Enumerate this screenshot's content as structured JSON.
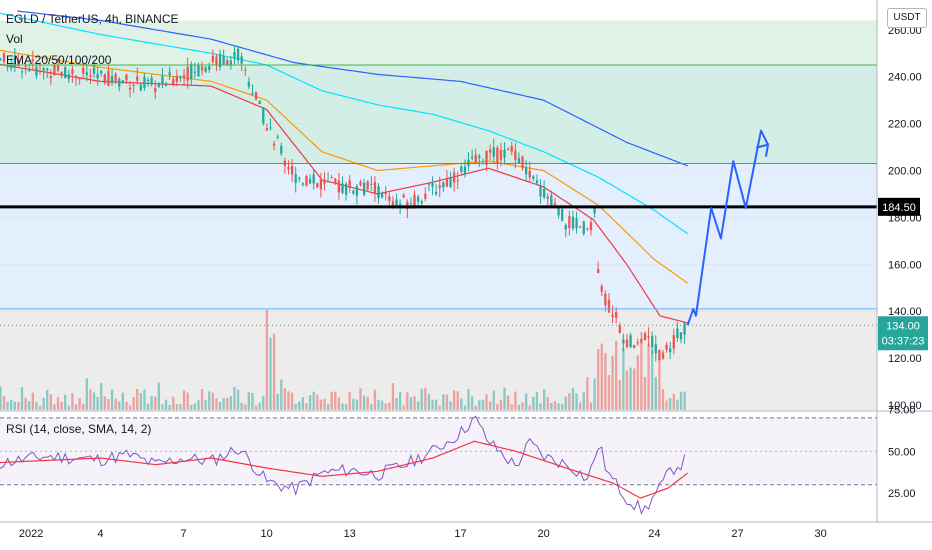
{
  "header": {
    "symbol_line": "EGLD / TetherUS, 4h, BINANCE",
    "vol_label": "Vol",
    "ema_label": "EMA 20/50/100/200",
    "currency": "USDT"
  },
  "rsi_panel": {
    "label": "RSI (14, close, SMA, 14, 2)"
  },
  "price_badges": {
    "level": "184.50",
    "last_price": "134.00",
    "countdown": "03:37:23"
  },
  "colors": {
    "up": "#26a69a",
    "down": "#ef5350",
    "ema20": "#f23645",
    "ema50": "#ff9800",
    "ema100": "#00e5ff",
    "ema200": "#2962ff",
    "projection": "#2962ff",
    "rsi": "#7e57c2",
    "rsi_ma": "#f23645",
    "zone_green": "#e0f2e6",
    "zone_teal": "#d3eee6",
    "zone_blue": "#e3effc",
    "zone_gray": "#ececec"
  },
  "chart_data": [
    {
      "type": "candlestick",
      "title": "EGLD / TetherUS, 4h, BINANCE",
      "xlabel": "",
      "ylabel": "",
      "x_ticks": [
        "2022",
        "4",
        "7",
        "10",
        "13",
        "17",
        "20",
        "24",
        "27",
        "30"
      ],
      "y_ticks": [
        100,
        120,
        140,
        160,
        180,
        200,
        220,
        240,
        260
      ],
      "ylim": [
        97,
        264
      ],
      "horizontal_levels": [
        {
          "value": 184.5,
          "style": "thick black line",
          "label": "184.50"
        },
        {
          "value": 245,
          "style": "thin green line"
        },
        {
          "value": 203,
          "style": "thin teal line"
        },
        {
          "value": 141,
          "style": "thin blue line"
        }
      ],
      "zones": [
        {
          "from": 245,
          "to": 264,
          "color": "green"
        },
        {
          "from": 203,
          "to": 245,
          "color": "teal"
        },
        {
          "from": 141,
          "to": 203,
          "color": "light blue"
        },
        {
          "from": 97,
          "to": 141,
          "color": "light gray"
        }
      ],
      "close_anchors": [
        [
          0,
          248
        ],
        [
          2,
          243
        ],
        [
          4,
          240
        ],
        [
          6,
          236
        ],
        [
          8,
          246
        ],
        [
          9,
          249
        ],
        [
          10,
          220
        ],
        [
          11,
          198
        ],
        [
          12,
          194
        ],
        [
          14,
          192
        ],
        [
          14.6,
          185
        ],
        [
          15.4,
          188
        ],
        [
          16.6,
          196
        ],
        [
          17.4,
          203
        ],
        [
          18,
          206
        ],
        [
          19,
          208
        ],
        [
          19.6,
          195
        ],
        [
          20.2,
          188
        ],
        [
          20.8,
          178
        ],
        [
          21.6,
          175
        ],
        [
          21.85,
          182
        ],
        [
          22,
          150
        ],
        [
          22.5,
          140
        ],
        [
          23,
          126
        ],
        [
          23.8,
          131
        ],
        [
          24.2,
          121
        ],
        [
          24.6,
          126
        ],
        [
          25.0,
          132
        ],
        [
          25.2,
          134
        ]
      ],
      "emas": [
        {
          "name": "EMA 20",
          "points": [
            [
              0,
              246
            ],
            [
              4,
              238
            ],
            [
              8,
              236
            ],
            [
              10,
              226
            ],
            [
              12,
              196
            ],
            [
              14,
              190
            ],
            [
              16,
              195
            ],
            [
              18,
              201
            ],
            [
              20,
              193
            ],
            [
              21.8,
              179
            ],
            [
              23,
              160
            ],
            [
              24.2,
              138
            ],
            [
              25.2,
              135
            ]
          ]
        },
        {
          "name": "EMA 50",
          "points": [
            [
              0,
              252
            ],
            [
              4,
              244
            ],
            [
              8,
              238
            ],
            [
              10,
              230
            ],
            [
              12,
              208
            ],
            [
              14,
              200
            ],
            [
              16,
              202
            ],
            [
              18,
              204
            ],
            [
              20,
              200
            ],
            [
              22,
              185
            ],
            [
              24,
              162
            ],
            [
              25.2,
              152
            ]
          ]
        },
        {
          "name": "EMA 100",
          "points": [
            [
              0,
              268
            ],
            [
              4,
              258
            ],
            [
              8,
              250
            ],
            [
              10,
              245
            ],
            [
              12,
              234
            ],
            [
              14,
              228
            ],
            [
              16,
              224
            ],
            [
              18,
              217
            ],
            [
              20,
              208
            ],
            [
              22,
              197
            ],
            [
              24,
              183
            ],
            [
              25.2,
              173
            ]
          ]
        },
        {
          "name": "EMA 200",
          "points": [
            [
              1,
              268
            ],
            [
              4,
              264
            ],
            [
              8,
              256
            ],
            [
              11,
              246
            ],
            [
              14,
              241
            ],
            [
              17,
              238
            ],
            [
              20,
              230
            ],
            [
              23,
              212
            ],
            [
              25.2,
              202
            ]
          ]
        }
      ],
      "projection_path": [
        [
          25.2,
          134
        ],
        [
          25.4,
          141
        ],
        [
          25.5,
          138
        ],
        [
          26.05,
          184
        ],
        [
          26.4,
          171
        ],
        [
          26.85,
          204
        ],
        [
          27.3,
          184
        ],
        [
          27.85,
          217
        ],
        [
          28.1,
          211
        ]
      ],
      "last_price": 134.0
    },
    {
      "type": "line",
      "title": "RSI (14, close, SMA, 14, 2)",
      "y_ticks": [
        25,
        50,
        75
      ],
      "ylim": [
        10,
        75
      ],
      "bands": [
        30,
        70
      ],
      "series": [
        {
          "name": "RSI",
          "anchors": [
            [
              0,
              42
            ],
            [
              2,
              47
            ],
            [
              4,
              45
            ],
            [
              5,
              48
            ],
            [
              6,
              42
            ],
            [
              7,
              46
            ],
            [
              8,
              44
            ],
            [
              9,
              52
            ],
            [
              10,
              32
            ],
            [
              11,
              27
            ],
            [
              12,
              37
            ],
            [
              13,
              39
            ],
            [
              14,
              36
            ],
            [
              15,
              42
            ],
            [
              16,
              50
            ],
            [
              17,
              61
            ],
            [
              17.5,
              70
            ],
            [
              18,
              56
            ],
            [
              19,
              41
            ],
            [
              19.5,
              55
            ],
            [
              20,
              47
            ],
            [
              21,
              41
            ],
            [
              21.6,
              33
            ],
            [
              22,
              55
            ],
            [
              22.3,
              37
            ],
            [
              23.0,
              22
            ],
            [
              23.6,
              14
            ],
            [
              24.2,
              28
            ],
            [
              24.6,
              39
            ],
            [
              25.0,
              43
            ],
            [
              25.2,
              46
            ]
          ]
        },
        {
          "name": "RSI-based MA",
          "anchors": [
            [
              0,
              43
            ],
            [
              4,
              46
            ],
            [
              6,
              42
            ],
            [
              8,
              46
            ],
            [
              10,
              40
            ],
            [
              12,
              35
            ],
            [
              14,
              38
            ],
            [
              16,
              46
            ],
            [
              17.5,
              56
            ],
            [
              19,
              50
            ],
            [
              21,
              39
            ],
            [
              22.5,
              31
            ],
            [
              23.5,
              22
            ],
            [
              24.5,
              28
            ],
            [
              25.2,
              37
            ]
          ]
        }
      ]
    }
  ]
}
